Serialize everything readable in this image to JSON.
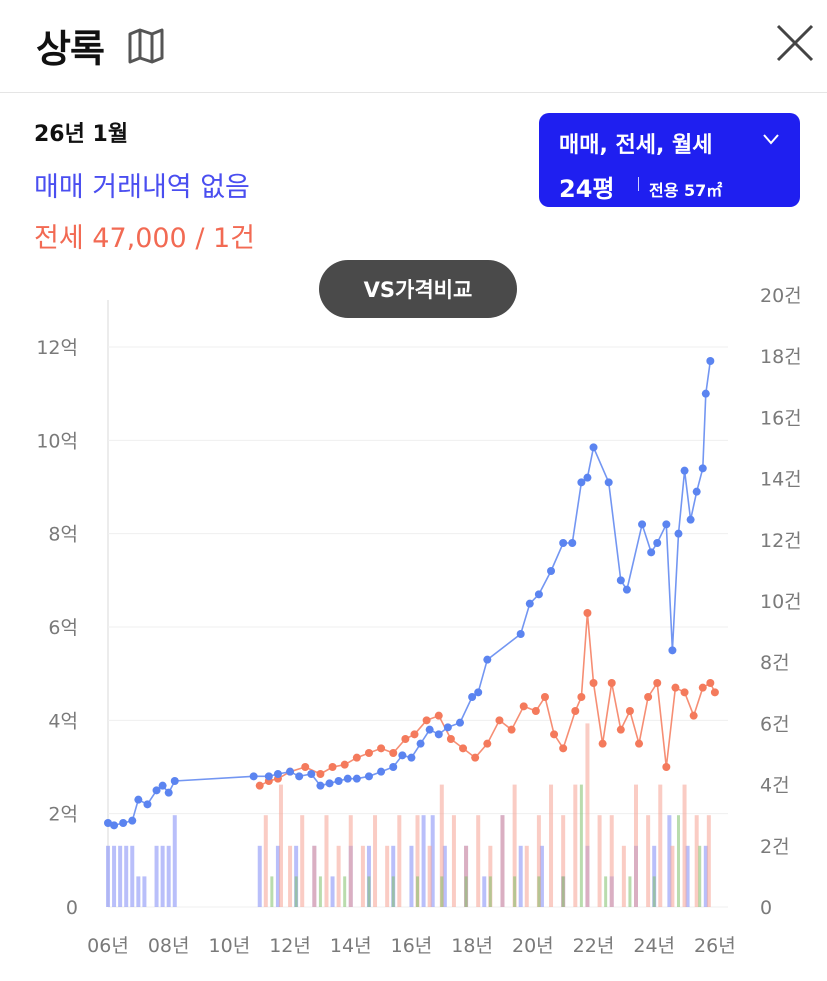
{
  "header": {
    "title": "상록",
    "map_icon": "map-icon",
    "close_icon": "close-icon"
  },
  "summary": {
    "date": "26년 1월",
    "sale_text": "매매 거래내역 없음",
    "lease_text": "전세 47,000 / 1건"
  },
  "filter": {
    "types": "매매, 전세, 월세",
    "size": "24평",
    "area": "전용 57㎡"
  },
  "vs_button": "VS가격비교",
  "colors": {
    "sale": "#5b84f0",
    "lease": "#f47a5c",
    "volume_sale": "#7f8bf5",
    "volume_lease": "#f6a293",
    "volume_rent": "#7fc06a",
    "accent": "#1f1ff0"
  },
  "chart_data": {
    "type": "line",
    "x_ticks": [
      "06년",
      "08년",
      "10년",
      "12년",
      "14년",
      "16년",
      "18년",
      "20년",
      "22년",
      "24년",
      "26년"
    ],
    "x_range": [
      2006,
      2026.3
    ],
    "y_left": {
      "ticks": [
        "0",
        "2억",
        "4억",
        "6억",
        "8억",
        "10억",
        "12억"
      ],
      "range_eok": [
        0,
        12
      ]
    },
    "y_right": {
      "ticks": [
        "0",
        "2건",
        "4건",
        "6건",
        "8건",
        "10건",
        "12건",
        "14건",
        "16건",
        "18건",
        "20건"
      ],
      "range_count": [
        0,
        20
      ]
    },
    "series": [
      {
        "points": [
          [
            2006,
            1.8
          ],
          [
            2006.2,
            1.75
          ],
          [
            2006.5,
            1.8
          ],
          [
            2006.8,
            1.85
          ],
          [
            2007,
            2.3
          ],
          [
            2007.3,
            2.2
          ],
          [
            2007.6,
            2.5
          ],
          [
            2007.8,
            2.6
          ],
          [
            2008,
            2.45
          ],
          [
            2008.2,
            2.7
          ],
          [
            2010.8,
            2.8
          ],
          [
            2011.3,
            2.8
          ],
          [
            2011.6,
            2.85
          ],
          [
            2012,
            2.9
          ],
          [
            2012.3,
            2.8
          ],
          [
            2012.7,
            2.85
          ],
          [
            2013,
            2.6
          ],
          [
            2013.3,
            2.65
          ],
          [
            2013.6,
            2.7
          ],
          [
            2013.9,
            2.75
          ],
          [
            2014.2,
            2.75
          ],
          [
            2014.6,
            2.8
          ],
          [
            2015,
            2.9
          ],
          [
            2015.4,
            3.0
          ],
          [
            2015.7,
            3.25
          ],
          [
            2016,
            3.2
          ],
          [
            2016.3,
            3.5
          ],
          [
            2016.6,
            3.8
          ],
          [
            2016.9,
            3.7
          ],
          [
            2017.2,
            3.85
          ],
          [
            2017.6,
            3.95
          ],
          [
            2018,
            4.5
          ],
          [
            2018.2,
            4.6
          ],
          [
            2018.5,
            5.3
          ],
          [
            2019.6,
            5.85
          ],
          [
            2019.9,
            6.5
          ],
          [
            2020.2,
            6.7
          ],
          [
            2020.6,
            7.2
          ],
          [
            2021,
            7.8
          ],
          [
            2021.3,
            7.8
          ],
          [
            2021.6,
            9.1
          ],
          [
            2021.8,
            9.2
          ],
          [
            2022,
            9.85
          ],
          [
            2022.5,
            9.1
          ],
          [
            2022.9,
            7.0
          ],
          [
            2023.1,
            6.8
          ],
          [
            2023.6,
            8.2
          ],
          [
            2023.9,
            7.6
          ],
          [
            2024.1,
            7.8
          ],
          [
            2024.4,
            8.2
          ],
          [
            2024.6,
            5.5
          ],
          [
            2024.8,
            8.0
          ],
          [
            2025.0,
            9.35
          ],
          [
            2025.2,
            8.3
          ],
          [
            2025.4,
            8.9
          ],
          [
            2025.6,
            9.4
          ],
          [
            2025.7,
            11.0
          ],
          [
            2025.85,
            11.7
          ]
        ]
      },
      {
        "points": [
          [
            2011.0,
            2.6
          ],
          [
            2011.3,
            2.7
          ],
          [
            2011.6,
            2.75
          ],
          [
            2012,
            2.9
          ],
          [
            2012.5,
            3.0
          ],
          [
            2013,
            2.85
          ],
          [
            2013.4,
            3.0
          ],
          [
            2013.8,
            3.05
          ],
          [
            2014.2,
            3.2
          ],
          [
            2014.6,
            3.3
          ],
          [
            2015,
            3.4
          ],
          [
            2015.4,
            3.3
          ],
          [
            2015.8,
            3.6
          ],
          [
            2016.1,
            3.7
          ],
          [
            2016.5,
            4.0
          ],
          [
            2016.9,
            4.1
          ],
          [
            2017.3,
            3.6
          ],
          [
            2017.7,
            3.4
          ],
          [
            2018.1,
            3.2
          ],
          [
            2018.5,
            3.5
          ],
          [
            2018.9,
            4.0
          ],
          [
            2019.3,
            3.8
          ],
          [
            2019.7,
            4.3
          ],
          [
            2020.1,
            4.2
          ],
          [
            2020.4,
            4.5
          ],
          [
            2020.7,
            3.7
          ],
          [
            2021.0,
            3.4
          ],
          [
            2021.4,
            4.2
          ],
          [
            2021.6,
            4.5
          ],
          [
            2021.8,
            6.3
          ],
          [
            2022.0,
            4.8
          ],
          [
            2022.3,
            3.5
          ],
          [
            2022.6,
            4.8
          ],
          [
            2022.9,
            3.8
          ],
          [
            2023.2,
            4.2
          ],
          [
            2023.5,
            3.5
          ],
          [
            2023.8,
            4.5
          ],
          [
            2024.1,
            4.8
          ],
          [
            2024.4,
            3.0
          ],
          [
            2024.7,
            4.7
          ],
          [
            2025.0,
            4.6
          ],
          [
            2025.3,
            4.1
          ],
          [
            2025.6,
            4.7
          ],
          [
            2025.85,
            4.8
          ],
          [
            2026.0,
            4.6
          ]
        ]
      }
    ],
    "volume": {
      "sale": [
        [
          2006,
          2
        ],
        [
          2006.2,
          2
        ],
        [
          2006.4,
          2
        ],
        [
          2006.6,
          2
        ],
        [
          2006.8,
          2
        ],
        [
          2007.0,
          1
        ],
        [
          2007.2,
          1
        ],
        [
          2007.6,
          2
        ],
        [
          2007.8,
          2
        ],
        [
          2008.0,
          2
        ],
        [
          2008.2,
          3
        ],
        [
          2011.0,
          2
        ],
        [
          2011.6,
          2
        ],
        [
          2012.2,
          2
        ],
        [
          2012.8,
          2
        ],
        [
          2013.4,
          1
        ],
        [
          2014.0,
          2
        ],
        [
          2014.6,
          2
        ],
        [
          2015.4,
          2
        ],
        [
          2016.0,
          2
        ],
        [
          2016.4,
          3
        ],
        [
          2016.7,
          3
        ],
        [
          2017.1,
          2
        ],
        [
          2017.8,
          2
        ],
        [
          2018.4,
          1
        ],
        [
          2019.0,
          3
        ],
        [
          2019.6,
          2
        ],
        [
          2020.3,
          2
        ],
        [
          2021.0,
          1
        ],
        [
          2021.8,
          2
        ],
        [
          2022.6,
          1
        ],
        [
          2023.4,
          2
        ],
        [
          2024.0,
          2
        ],
        [
          2024.5,
          3
        ],
        [
          2025.1,
          2
        ],
        [
          2025.7,
          2
        ]
      ],
      "lease": [
        [
          2011.2,
          3
        ],
        [
          2011.7,
          4
        ],
        [
          2012.0,
          2
        ],
        [
          2012.4,
          3
        ],
        [
          2012.8,
          2
        ],
        [
          2013.2,
          3
        ],
        [
          2013.6,
          2
        ],
        [
          2014.0,
          3
        ],
        [
          2014.4,
          2
        ],
        [
          2014.8,
          3
        ],
        [
          2015.2,
          2
        ],
        [
          2015.6,
          3
        ],
        [
          2016.2,
          3
        ],
        [
          2016.6,
          2
        ],
        [
          2017.0,
          4
        ],
        [
          2017.4,
          3
        ],
        [
          2017.8,
          2
        ],
        [
          2018.2,
          3
        ],
        [
          2018.6,
          2
        ],
        [
          2019.0,
          3
        ],
        [
          2019.4,
          4
        ],
        [
          2019.8,
          2
        ],
        [
          2020.2,
          3
        ],
        [
          2020.6,
          4
        ],
        [
          2021.0,
          3
        ],
        [
          2021.4,
          4
        ],
        [
          2021.8,
          6
        ],
        [
          2022.2,
          3
        ],
        [
          2022.6,
          3
        ],
        [
          2023.0,
          2
        ],
        [
          2023.4,
          4
        ],
        [
          2023.8,
          3
        ],
        [
          2024.2,
          4
        ],
        [
          2024.6,
          2
        ],
        [
          2025.0,
          4
        ],
        [
          2025.4,
          3
        ],
        [
          2025.8,
          3
        ]
      ],
      "rent": [
        [
          2011.4,
          1
        ],
        [
          2012.2,
          1
        ],
        [
          2013.0,
          1
        ],
        [
          2013.8,
          1
        ],
        [
          2014.6,
          1
        ],
        [
          2015.4,
          1
        ],
        [
          2016.2,
          1
        ],
        [
          2017.0,
          1
        ],
        [
          2017.8,
          1
        ],
        [
          2018.6,
          1
        ],
        [
          2019.4,
          1
        ],
        [
          2020.2,
          1
        ],
        [
          2021.0,
          1
        ],
        [
          2021.6,
          4
        ],
        [
          2022.4,
          1
        ],
        [
          2023.2,
          1
        ],
        [
          2024.0,
          1
        ],
        [
          2024.8,
          3
        ],
        [
          2025.5,
          2
        ]
      ]
    },
    "grid": true
  }
}
